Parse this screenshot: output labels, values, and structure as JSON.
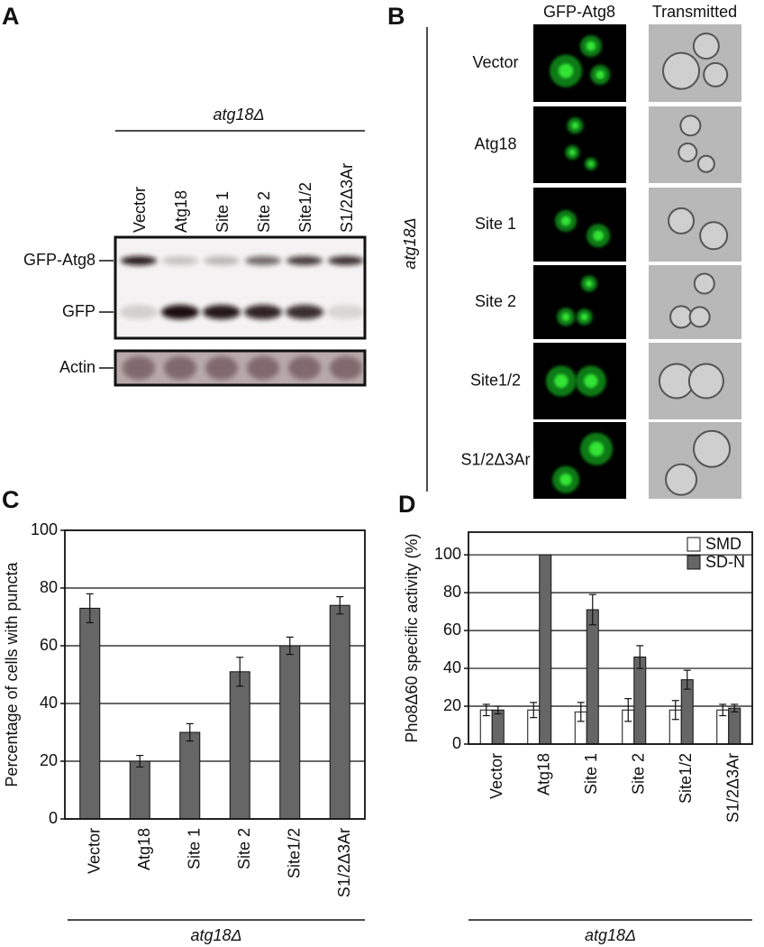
{
  "panel_a": {
    "letter": "A",
    "strain": "atg18Δ",
    "lanes": [
      "Vector",
      "Atg18",
      "Site 1",
      "Site 2",
      "Site1/2",
      "S1/2Δ3Ar"
    ],
    "rows": [
      "GFP-Atg8",
      "GFP",
      "Actin"
    ]
  },
  "panel_b": {
    "letter": "B",
    "strain": "atg18Δ",
    "columns": [
      "GFP-Atg8",
      "Transmitted"
    ],
    "rows": [
      "Vector",
      "Atg18",
      "Site 1",
      "Site 2",
      "Site1/2",
      "S1/2Δ3Ar"
    ]
  },
  "chart_data": [
    {
      "type": "bar",
      "letter": "C",
      "ylabel": "Percentage of cells with puncta",
      "xlabel": "atg18Δ",
      "categories": [
        "Vector",
        "Atg18",
        "Site 1",
        "Site 2",
        "Site1/2",
        "S1/2Δ3Ar"
      ],
      "series": [
        {
          "color": "#666666",
          "values": [
            73,
            20,
            30,
            51,
            60,
            74
          ],
          "errors": [
            5,
            2,
            3,
            5,
            3,
            3
          ]
        }
      ],
      "ylim": [
        0,
        100
      ],
      "yticks": [
        0,
        20,
        40,
        60,
        80,
        100
      ],
      "grid": true
    },
    {
      "type": "bar",
      "letter": "D",
      "ylabel": "Pho8Δ60 specific activity (%)",
      "xlabel": "atg18Δ",
      "categories": [
        "Vector",
        "Atg18",
        "Site 1",
        "Site 2",
        "Site1/2",
        "S1/2Δ3Ar"
      ],
      "series": [
        {
          "name": "SMD",
          "color": "#ffffff",
          "values": [
            18,
            18,
            17,
            18,
            18,
            18
          ],
          "errors": [
            3,
            4,
            5,
            6,
            5,
            3
          ]
        },
        {
          "name": "SD-N",
          "color": "#666666",
          "values": [
            18,
            100,
            71,
            46,
            34,
            19
          ],
          "errors": [
            2,
            null,
            8,
            6,
            5,
            2
          ]
        }
      ],
      "ylim": [
        0,
        112
      ],
      "yticks": [
        0,
        20,
        40,
        60,
        80,
        100
      ],
      "grid": true,
      "legend": "upper right"
    }
  ]
}
